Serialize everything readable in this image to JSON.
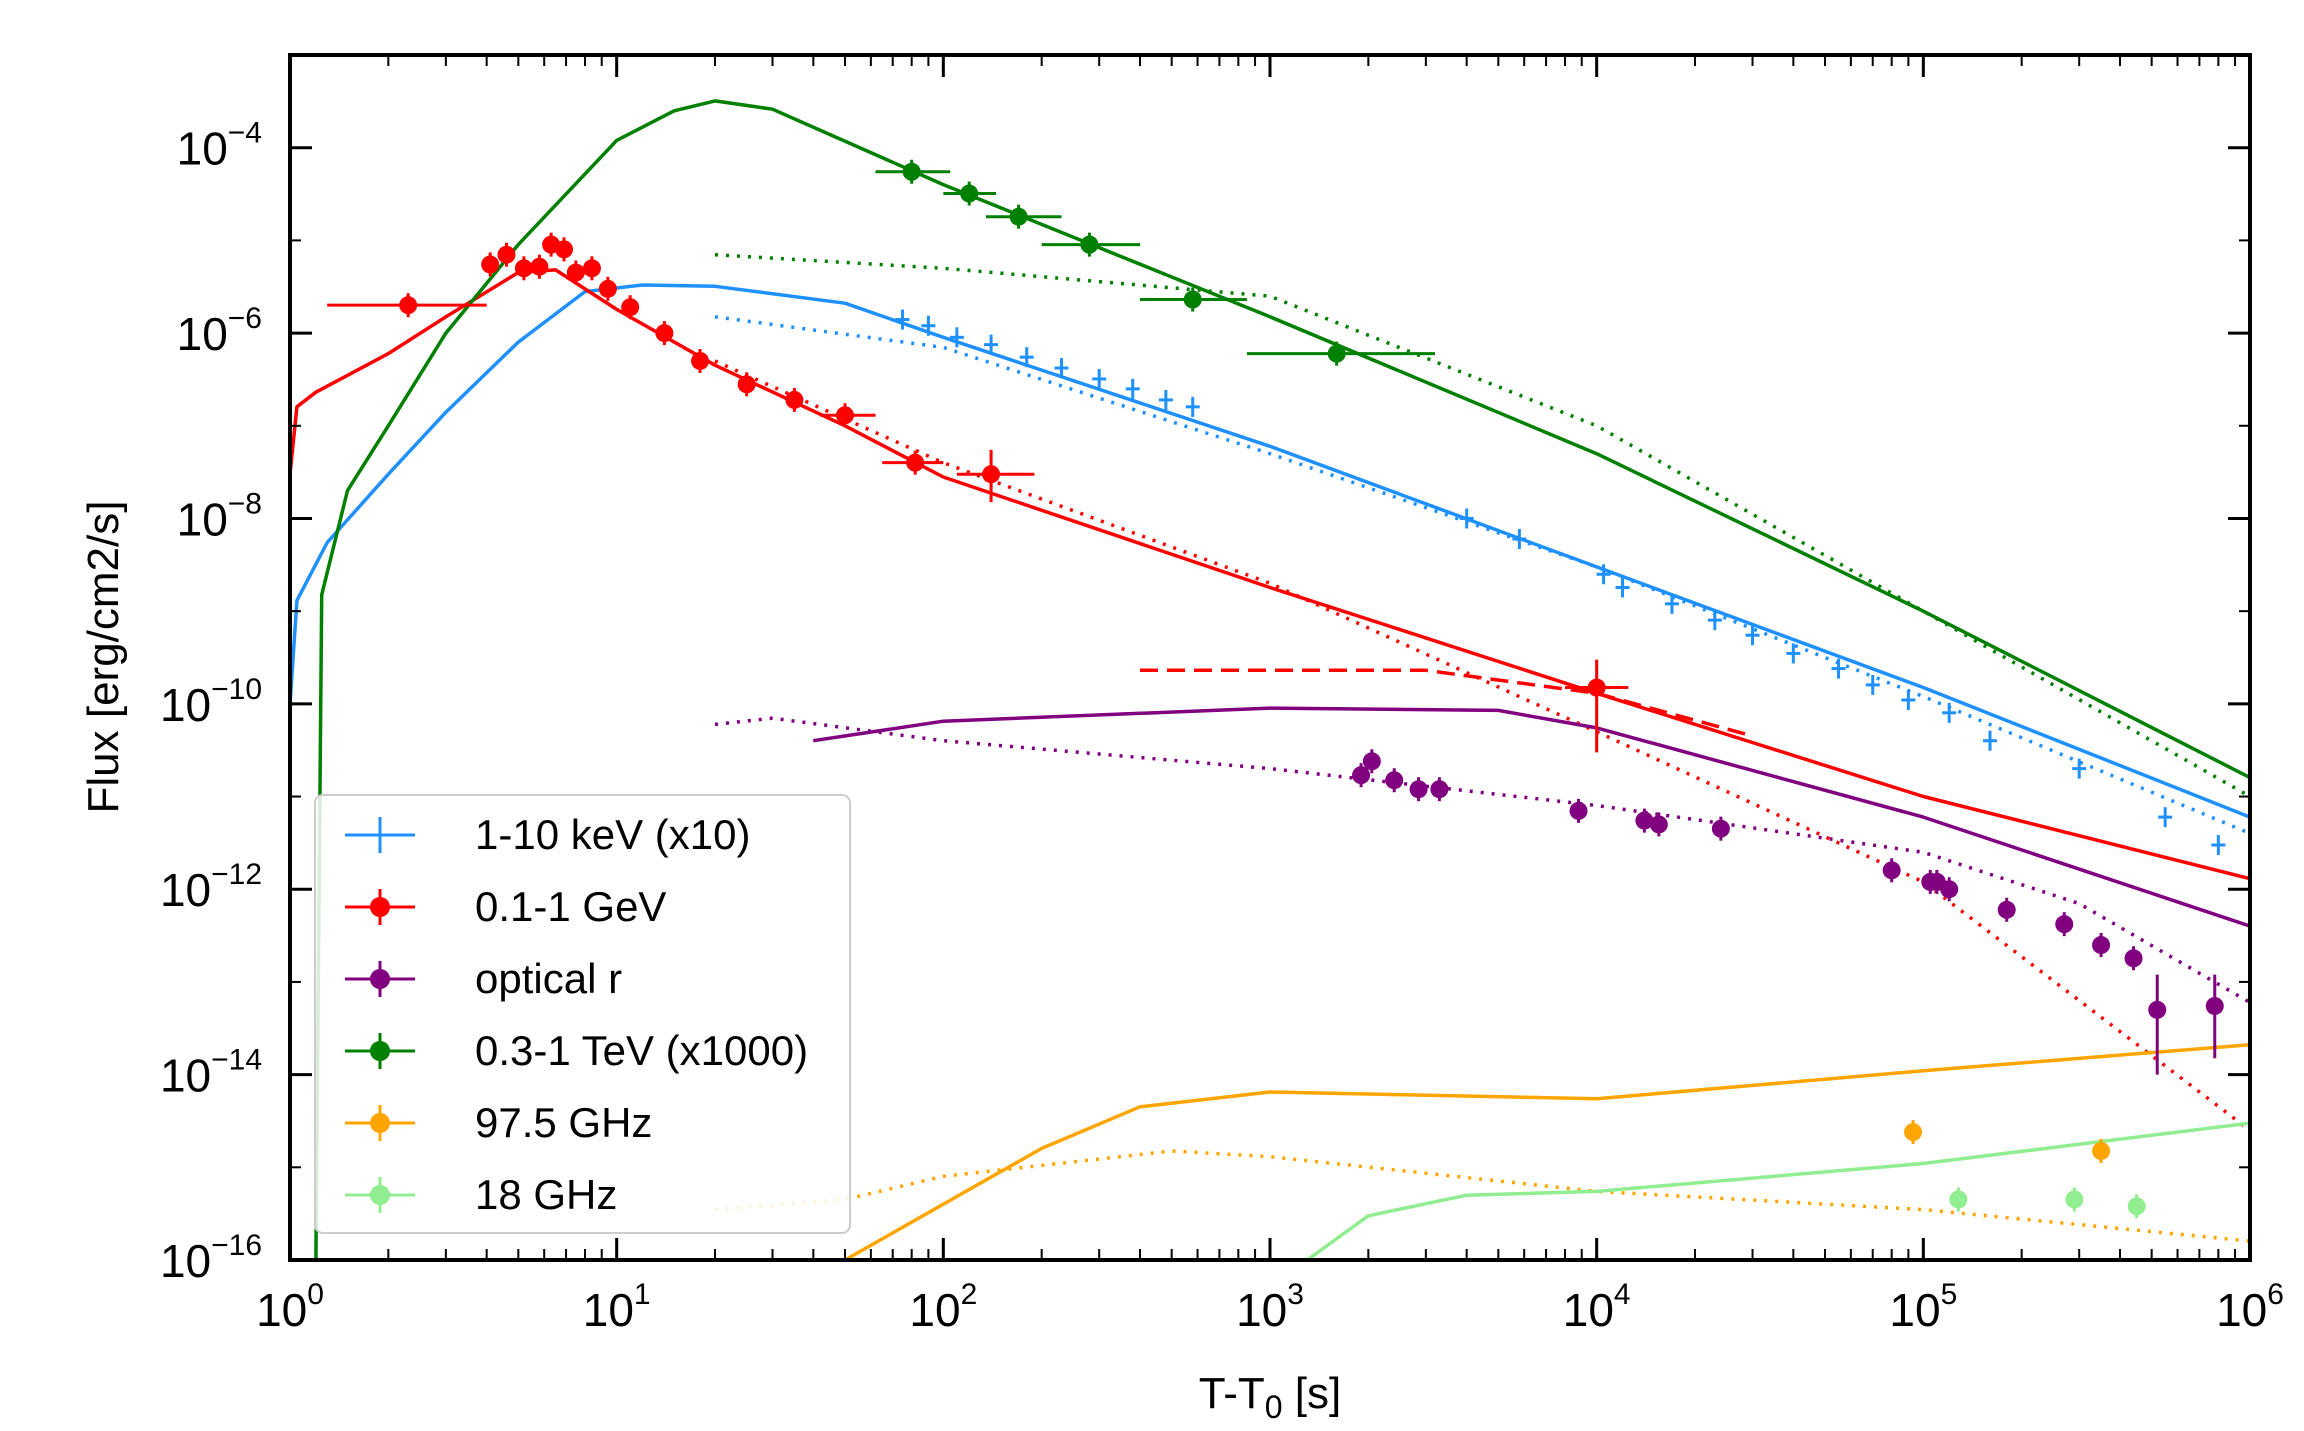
{
  "chart_data": {
    "type": "scatter",
    "title": "",
    "xlabel": "T-T0 [s]",
    "xlabel_parts": {
      "main": "T-T",
      "sub": "0",
      "unit": " [s]"
    },
    "ylabel": "Flux [erg/cm2/s]",
    "xscale": "log",
    "yscale": "log",
    "xlim": [
      1,
      1000000
    ],
    "ylim": [
      1e-16,
      0.001
    ],
    "x_ticks": [
      {
        "base": "10",
        "exp": "0",
        "value": 1
      },
      {
        "base": "10",
        "exp": "1",
        "value": 10
      },
      {
        "base": "10",
        "exp": "2",
        "value": 100
      },
      {
        "base": "10",
        "exp": "3",
        "value": 1000
      },
      {
        "base": "10",
        "exp": "4",
        "value": 10000
      },
      {
        "base": "10",
        "exp": "5",
        "value": 100000
      },
      {
        "base": "10",
        "exp": "6",
        "value": 1000000
      }
    ],
    "y_ticks": [
      {
        "base": "10",
        "exp": "−4",
        "value": 0.0001
      },
      {
        "base": "10",
        "exp": "−6",
        "value": 1e-06
      },
      {
        "base": "10",
        "exp": "−8",
        "value": 1e-08
      },
      {
        "base": "10",
        "exp": "−10",
        "value": 1e-10
      },
      {
        "base": "10",
        "exp": "−12",
        "value": 1e-12
      },
      {
        "base": "10",
        "exp": "−14",
        "value": 1e-14
      },
      {
        "base": "10",
        "exp": "−16",
        "value": 1e-16
      }
    ],
    "legend_position": "lower-left",
    "series": [
      {
        "name": "1-10 keV (x10)",
        "color": "#1e90ff",
        "marker": "plus",
        "points": [
          {
            "x": 75,
            "y": 1.4e-06
          },
          {
            "x": 90,
            "y": 1.2e-06
          },
          {
            "x": 110,
            "y": 9e-07
          },
          {
            "x": 140,
            "y": 7.5e-07
          },
          {
            "x": 180,
            "y": 5.5e-07
          },
          {
            "x": 230,
            "y": 4.2e-07
          },
          {
            "x": 300,
            "y": 3.2e-07
          },
          {
            "x": 380,
            "y": 2.5e-07
          },
          {
            "x": 480,
            "y": 1.9e-07
          },
          {
            "x": 580,
            "y": 1.6e-07
          },
          {
            "x": 4000,
            "y": 1e-08
          },
          {
            "x": 5800,
            "y": 6e-09
          },
          {
            "x": 10500,
            "y": 2.5e-09
          },
          {
            "x": 12000,
            "y": 1.8e-09
          },
          {
            "x": 17000,
            "y": 1.2e-09
          },
          {
            "x": 23000,
            "y": 8e-10
          },
          {
            "x": 30000,
            "y": 5.5e-10
          },
          {
            "x": 40000,
            "y": 3.5e-10
          },
          {
            "x": 55000,
            "y": 2.4e-10
          },
          {
            "x": 70000,
            "y": 1.6e-10
          },
          {
            "x": 90000,
            "y": 1.1e-10
          },
          {
            "x": 120000,
            "y": 8e-11
          },
          {
            "x": 160000,
            "y": 4e-11
          },
          {
            "x": 300000,
            "y": 2e-11
          },
          {
            "x": 550000,
            "y": 6e-12
          },
          {
            "x": 800000,
            "y": 3e-12
          }
        ]
      },
      {
        "name": "0.1-1 GeV",
        "color": "#ff0000",
        "marker": "circle",
        "points": [
          {
            "x": 2.3,
            "y": 2e-06,
            "xerr": [
              1.3,
              4.0
            ]
          },
          {
            "x": 4.1,
            "y": 5.5e-06
          },
          {
            "x": 4.6,
            "y": 7e-06
          },
          {
            "x": 5.2,
            "y": 5e-06
          },
          {
            "x": 5.8,
            "y": 5.2e-06
          },
          {
            "x": 6.3,
            "y": 9e-06
          },
          {
            "x": 6.9,
            "y": 8e-06
          },
          {
            "x": 7.5,
            "y": 4.5e-06
          },
          {
            "x": 8.4,
            "y": 5e-06
          },
          {
            "x": 9.4,
            "y": 3e-06
          },
          {
            "x": 11,
            "y": 1.9e-06
          },
          {
            "x": 14,
            "y": 1e-06
          },
          {
            "x": 18,
            "y": 5e-07
          },
          {
            "x": 25,
            "y": 2.8e-07
          },
          {
            "x": 35,
            "y": 1.9e-07
          },
          {
            "x": 50,
            "y": 1.3e-07,
            "xerr": [
              42,
              62
            ]
          },
          {
            "x": 82,
            "y": 4e-08,
            "xerr": [
              65,
              100
            ]
          },
          {
            "x": 140,
            "y": 3e-08,
            "xerr": [
              110,
              190
            ],
            "yerr": [
              1.5e-08,
              5.5e-08
            ]
          },
          {
            "x": 10000,
            "y": 1.5e-10,
            "xerr": [
              8000,
              12500
            ],
            "yerr": [
              3e-11,
              3e-10
            ]
          }
        ]
      },
      {
        "name": "optical r",
        "color": "#800080",
        "marker": "circle",
        "points": [
          {
            "x": 1900,
            "y": 1.7e-11
          },
          {
            "x": 2050,
            "y": 2.4e-11
          },
          {
            "x": 2400,
            "y": 1.5e-11
          },
          {
            "x": 2850,
            "y": 1.2e-11
          },
          {
            "x": 3300,
            "y": 1.2e-11
          },
          {
            "x": 8800,
            "y": 7e-12
          },
          {
            "x": 14000,
            "y": 5.5e-12
          },
          {
            "x": 15500,
            "y": 5e-12
          },
          {
            "x": 24000,
            "y": 4.5e-12
          },
          {
            "x": 80000,
            "y": 1.6e-12
          },
          {
            "x": 105000,
            "y": 1.2e-12
          },
          {
            "x": 110000,
            "y": 1.2e-12
          },
          {
            "x": 120000,
            "y": 1e-12
          },
          {
            "x": 180000,
            "y": 6e-13
          },
          {
            "x": 270000,
            "y": 4.2e-13
          },
          {
            "x": 350000,
            "y": 2.5e-13
          },
          {
            "x": 440000,
            "y": 1.8e-13
          },
          {
            "x": 520000,
            "y": 5e-14,
            "yerr": [
              1e-14,
              1.2e-13
            ]
          },
          {
            "x": 780000,
            "y": 5.5e-14,
            "yerr": [
              1.5e-14,
              1.2e-13
            ]
          }
        ]
      },
      {
        "name": "0.3-1 TeV (x1000)",
        "color": "#008000",
        "marker": "circle",
        "points": [
          {
            "x": 80,
            "y": 5.5e-05,
            "xerr": [
              62,
              105
            ]
          },
          {
            "x": 120,
            "y": 3.2e-05,
            "xerr": [
              100,
              145
            ]
          },
          {
            "x": 170,
            "y": 1.8e-05,
            "xerr": [
              135,
              230
            ]
          },
          {
            "x": 280,
            "y": 9e-06,
            "xerr": [
              200,
              400
            ]
          },
          {
            "x": 580,
            "y": 2.3e-06,
            "xerr": [
              400,
              850
            ]
          },
          {
            "x": 1600,
            "y": 6e-07,
            "xerr": [
              850,
              3200
            ]
          }
        ]
      },
      {
        "name": "97.5 GHz",
        "color": "#ffa500",
        "marker": "circle",
        "points": [
          {
            "x": 93000,
            "y": 2.4e-15
          },
          {
            "x": 350000,
            "y": 1.5e-15
          }
        ]
      },
      {
        "name": "18 GHz",
        "color": "#90ee90",
        "marker": "circle",
        "points": [
          {
            "x": 128000,
            "y": 4.5e-16
          },
          {
            "x": 290000,
            "y": 4.5e-16
          },
          {
            "x": 450000,
            "y": 3.8e-16
          }
        ]
      }
    ],
    "model_curves": [
      {
        "series": "1-10 keV (x10)",
        "style": "solid",
        "points": [
          [
            1,
            1e-10
          ],
          [
            1.05,
            1.3e-09
          ],
          [
            1.3,
            5.5e-09
          ],
          [
            2,
            3e-08
          ],
          [
            3,
            1.4e-07
          ],
          [
            5,
            8e-07
          ],
          [
            8,
            2.8e-06
          ],
          [
            12,
            3.3e-06
          ],
          [
            20,
            3.2e-06
          ],
          [
            50,
            2.1e-06
          ],
          [
            100,
            9e-07
          ],
          [
            1000,
            6e-08
          ],
          [
            10000,
            3e-09
          ],
          [
            100000,
            1.5e-10
          ],
          [
            1000000,
            6e-12
          ]
        ]
      },
      {
        "series": "1-10 keV (x10)",
        "style": "dotted",
        "points": [
          [
            20,
            1.5e-06
          ],
          [
            100,
            7e-07
          ],
          [
            1000,
            5e-08
          ],
          [
            10000,
            3e-09
          ],
          [
            100000,
            1.2e-10
          ],
          [
            1000000,
            4e-12
          ]
        ]
      },
      {
        "series": "0.1-1 GeV",
        "style": "solid",
        "points": [
          [
            1,
            3e-08
          ],
          [
            1.05,
            1.6e-07
          ],
          [
            1.2,
            2.3e-07
          ],
          [
            2,
            6e-07
          ],
          [
            3,
            1.5e-06
          ],
          [
            5,
            4.5e-06
          ],
          [
            6.5,
            4.8e-06
          ],
          [
            10,
            1.8e-06
          ],
          [
            20,
            4.5e-07
          ],
          [
            50,
            1e-07
          ],
          [
            100,
            2.8e-08
          ],
          [
            1000,
            1.8e-09
          ],
          [
            10000,
            1.3e-10
          ],
          [
            100000,
            1e-11
          ],
          [
            1000000,
            1.3e-12
          ]
        ]
      },
      {
        "series": "0.1-1 GeV",
        "style": "dotted",
        "points": [
          [
            20,
            5e-07
          ],
          [
            100,
            4e-08
          ],
          [
            1000,
            2e-09
          ],
          [
            10000,
            5e-11
          ],
          [
            100000,
            1.2e-12
          ],
          [
            1000000,
            2.5e-15
          ]
        ]
      },
      {
        "series": "0.1-1 GeV",
        "style": "dashed",
        "points": [
          [
            400,
            2.3e-10
          ],
          [
            3000,
            2.3e-10
          ],
          [
            10000,
            1.3e-10
          ],
          [
            30000,
            4.5e-11
          ]
        ]
      },
      {
        "series": "optical r",
        "style": "solid",
        "points": [
          [
            40,
            4e-11
          ],
          [
            100,
            6.5e-11
          ],
          [
            1000,
            9e-11
          ],
          [
            5000,
            8.5e-11
          ],
          [
            10000,
            5.5e-11
          ],
          [
            100000,
            6e-12
          ],
          [
            1000000,
            4e-13
          ]
        ]
      },
      {
        "series": "optical r",
        "style": "dotted",
        "points": [
          [
            20,
            6e-11
          ],
          [
            30,
            7e-11
          ],
          [
            100,
            4e-11
          ],
          [
            1000,
            2e-11
          ],
          [
            10000,
            8e-12
          ],
          [
            100000,
            2.5e-12
          ],
          [
            300000,
            7e-13
          ],
          [
            1000000,
            6e-14
          ]
        ]
      },
      {
        "series": "0.3-1 TeV (x1000)",
        "style": "solid",
        "points": [
          [
            1.2,
            1e-16
          ],
          [
            1.25,
            1.5e-09
          ],
          [
            1.5,
            2e-08
          ],
          [
            2,
            1e-07
          ],
          [
            3,
            1e-06
          ],
          [
            5,
            9e-06
          ],
          [
            10,
            0.00012
          ],
          [
            15,
            0.00025
          ],
          [
            20,
            0.00032
          ],
          [
            30,
            0.00026
          ],
          [
            100,
            4e-05
          ],
          [
            1000,
            1.5e-06
          ],
          [
            10000,
            5e-08
          ],
          [
            100000,
            1e-09
          ],
          [
            1000000,
            1.6e-11
          ]
        ]
      },
      {
        "series": "0.3-1 TeV (x1000)",
        "style": "dotted",
        "points": [
          [
            20,
            7e-06
          ],
          [
            100,
            5e-06
          ],
          [
            1000,
            2.5e-06
          ],
          [
            10000,
            1e-07
          ],
          [
            100000,
            1e-09
          ],
          [
            1000000,
            1e-11
          ]
        ]
      },
      {
        "series": "97.5 GHz",
        "style": "solid",
        "points": [
          [
            50,
            1e-16
          ],
          [
            200,
            1.6e-15
          ],
          [
            400,
            4.5e-15
          ],
          [
            1000,
            6.5e-15
          ],
          [
            10000,
            5.5e-15
          ],
          [
            100000,
            1.1e-14
          ],
          [
            1000000,
            2.1e-14
          ]
        ]
      },
      {
        "series": "97.5 GHz",
        "style": "dotted",
        "points": [
          [
            20,
            3.5e-16
          ],
          [
            50,
            4.5e-16
          ],
          [
            100,
            8e-16
          ],
          [
            500,
            1.5e-15
          ],
          [
            1000,
            1.3e-15
          ],
          [
            10000,
            5.5e-16
          ],
          [
            100000,
            3.5e-16
          ],
          [
            1000000,
            1.6e-16
          ]
        ]
      },
      {
        "series": "18 GHz",
        "style": "solid",
        "points": [
          [
            1300,
            1e-16
          ],
          [
            2000,
            3e-16
          ],
          [
            4000,
            5e-16
          ],
          [
            10000,
            5.5e-16
          ],
          [
            100000,
            1.1e-15
          ],
          [
            1000000,
            3e-15
          ]
        ]
      }
    ]
  }
}
